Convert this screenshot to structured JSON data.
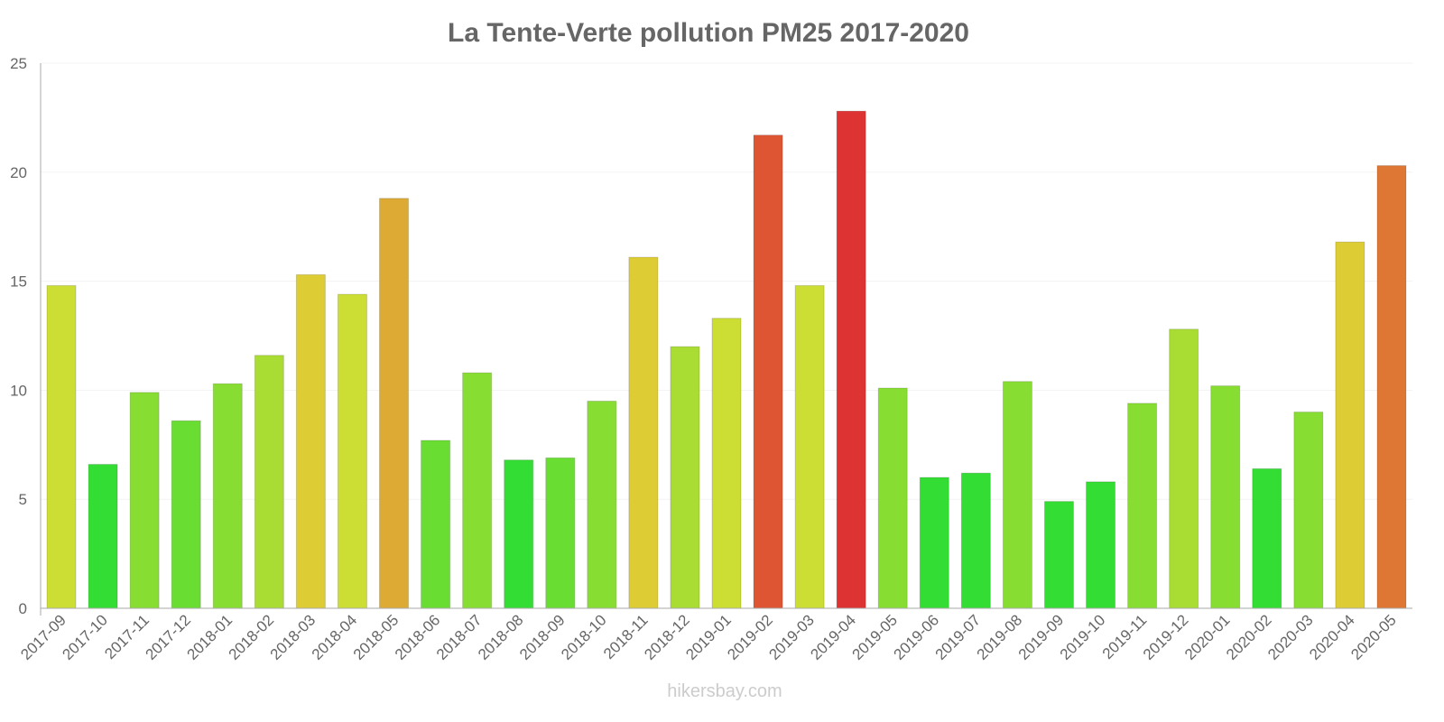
{
  "chart_data": {
    "type": "bar",
    "title": "La Tente-Verte pollution PM25 2017-2020",
    "xlabel": "",
    "ylabel": "",
    "ylim": [
      0,
      25
    ],
    "yticks": [
      0,
      5,
      10,
      15,
      20,
      25
    ],
    "grid": true,
    "categories": [
      "2017-09",
      "2017-10",
      "2017-11",
      "2017-12",
      "2018-01",
      "2018-02",
      "2018-03",
      "2018-04",
      "2018-05",
      "2018-06",
      "2018-07",
      "2018-08",
      "2018-09",
      "2018-10",
      "2018-11",
      "2018-12",
      "2019-01",
      "2019-02",
      "2019-03",
      "2019-04",
      "2019-05",
      "2019-06",
      "2019-07",
      "2019-08",
      "2019-09",
      "2019-10",
      "2019-11",
      "2019-12",
      "2020-01",
      "2020-02",
      "2020-03",
      "2020-04",
      "2020-05"
    ],
    "values": [
      14.8,
      6.6,
      9.9,
      8.6,
      10.3,
      11.6,
      15.3,
      14.4,
      18.8,
      7.7,
      10.8,
      6.8,
      6.9,
      9.5,
      16.1,
      12.0,
      13.3,
      21.7,
      14.8,
      22.8,
      10.1,
      6.0,
      6.2,
      10.4,
      4.9,
      5.8,
      9.4,
      12.8,
      10.2,
      6.4,
      9.0,
      16.8,
      20.3
    ],
    "colors": [
      "#ccdd33",
      "#33dd33",
      "#88dd33",
      "#6add33",
      "#88dd33",
      "#aadd33",
      "#ddcc33",
      "#ccdd33",
      "#ddaa33",
      "#6add33",
      "#88dd33",
      "#33dd33",
      "#6add33",
      "#88dd33",
      "#ddcc33",
      "#aadd33",
      "#ccdd33",
      "#dd5533",
      "#ccdd33",
      "#dd3333",
      "#88dd33",
      "#33dd33",
      "#33dd33",
      "#88dd33",
      "#33dd33",
      "#33dd33",
      "#88dd33",
      "#aadd33",
      "#88dd33",
      "#33dd33",
      "#88dd33",
      "#ddcc33",
      "#dd7733"
    ]
  },
  "watermark": "hikersbay.com"
}
